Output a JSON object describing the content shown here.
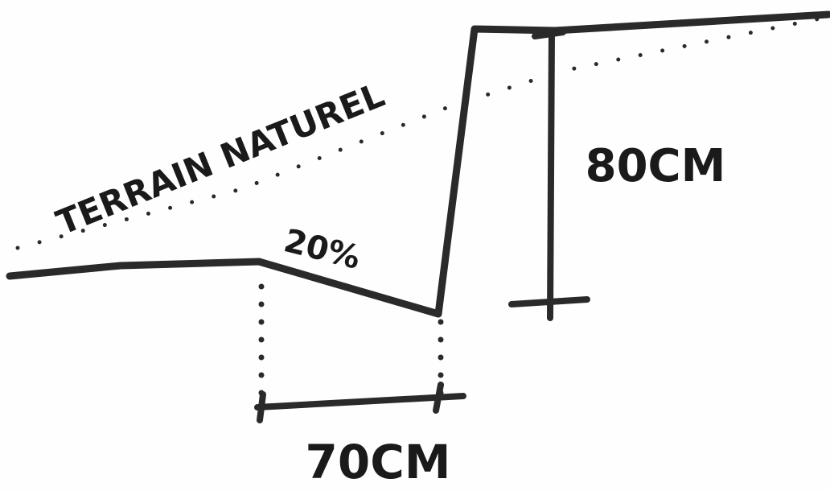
{
  "labels": {
    "terrain": "TERRAIN NATUREL",
    "slope": "20%",
    "height": "80CM",
    "width": "70CM"
  }
}
